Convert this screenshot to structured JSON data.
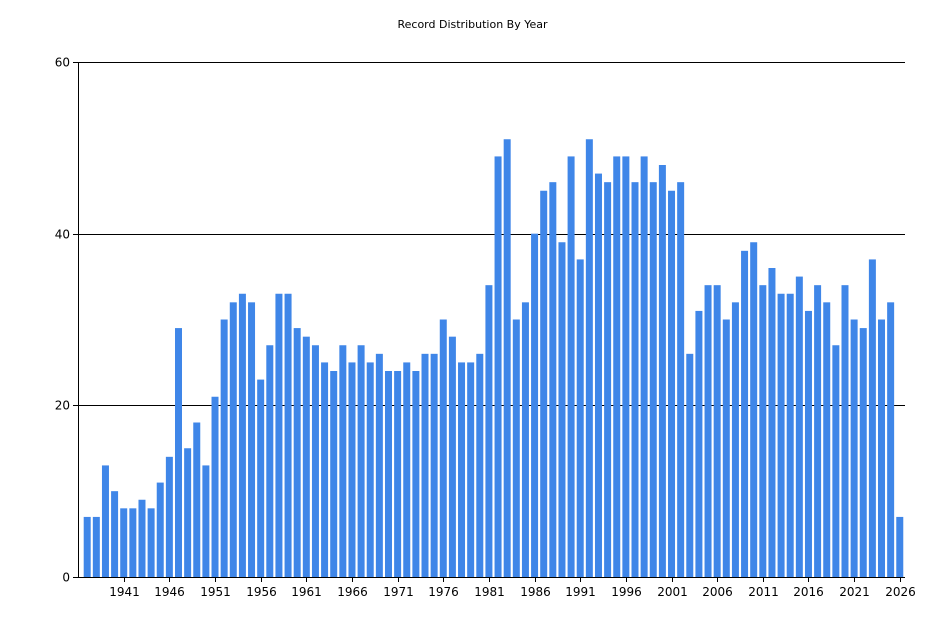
{
  "chart_data": {
    "type": "bar",
    "title": "Record Distribution By Year",
    "xlabel": "",
    "ylabel": "",
    "ylim": [
      0,
      60
    ],
    "yticks": [
      0,
      20,
      40,
      60
    ],
    "grid": "horizontal",
    "bar_color": "#3f86e8",
    "x_first": 1937,
    "x_last": 2026,
    "xticks": [
      1941,
      1946,
      1951,
      1956,
      1961,
      1966,
      1971,
      1976,
      1981,
      1986,
      1991,
      1996,
      2001,
      2006,
      2011,
      2016,
      2021,
      2026
    ],
    "values": [
      7,
      7,
      13,
      10,
      8,
      8,
      9,
      8,
      11,
      14,
      29,
      15,
      18,
      13,
      21,
      30,
      32,
      33,
      32,
      23,
      27,
      33,
      33,
      29,
      28,
      27,
      25,
      24,
      27,
      25,
      27,
      25,
      26,
      24,
      24,
      25,
      24,
      26,
      26,
      30,
      28,
      25,
      25,
      26,
      34,
      49,
      51,
      30,
      32,
      40,
      45,
      46,
      39,
      49,
      37,
      51,
      47,
      46,
      49,
      49,
      46,
      49,
      46,
      48,
      45,
      46,
      26,
      31,
      34,
      34,
      30,
      32,
      38,
      39,
      34,
      36,
      33,
      33,
      35,
      31,
      34,
      32,
      27,
      34,
      30,
      29,
      37,
      30,
      32,
      7
    ]
  }
}
